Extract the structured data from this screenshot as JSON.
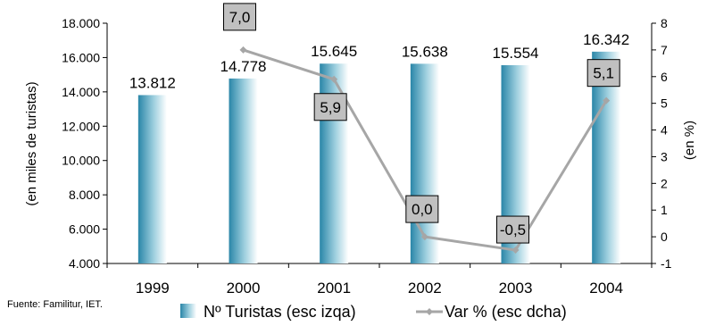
{
  "chart_data": {
    "type": "bar",
    "categories": [
      "1999",
      "2000",
      "2001",
      "2002",
      "2003",
      "2004"
    ],
    "series": [
      {
        "name": "Nº Turistas (esc izqa)",
        "type": "bar",
        "axis": "left",
        "values": [
          13812,
          14778,
          15645,
          15638,
          15554,
          16342
        ],
        "labels": [
          "13.812",
          "14.778",
          "15.645",
          "15.638",
          "15.554",
          "16.342"
        ],
        "color": "#1f7a99"
      },
      {
        "name": "Var % (esc dcha)",
        "type": "line",
        "axis": "right",
        "values": [
          null,
          7.0,
          5.9,
          0.0,
          -0.5,
          5.1
        ],
        "labels": [
          "",
          "7,0",
          "5,9",
          "0,0",
          "-0,5",
          "5,1"
        ],
        "color": "#a6a6a6"
      }
    ],
    "ylabel": "(en miles de turistas)",
    "y2label": "(en %)",
    "ylim": [
      4000,
      18000
    ],
    "y2lim": [
      -1,
      8
    ],
    "yticks": [
      "4.000",
      "6.000",
      "8.000",
      "10.000",
      "12.000",
      "14.000",
      "16.000",
      "18.000"
    ],
    "y2ticks": [
      "-1",
      "0",
      "1",
      "2",
      "3",
      "4",
      "5",
      "6",
      "7",
      "8"
    ],
    "grid": false,
    "legend": "bottom"
  },
  "source": "Fuente: Familitur, IET."
}
